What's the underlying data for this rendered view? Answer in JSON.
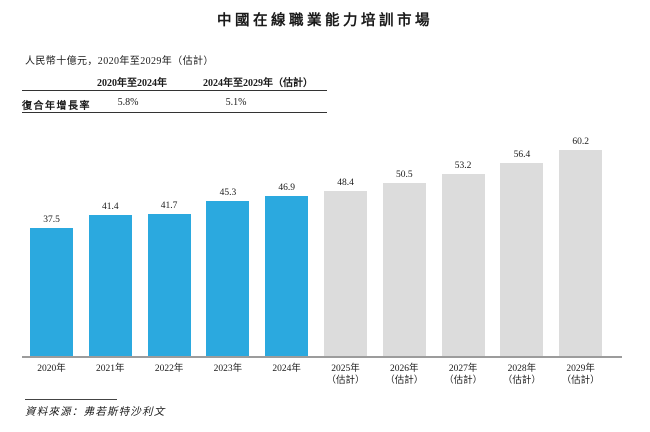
{
  "page": {
    "title": "中國在線職業能力培訓市場",
    "subtitle": "人民幣十億元，2020年至2029年（估計）",
    "source": "資料來源：弗若斯特沙利文"
  },
  "cagr_table": {
    "row_label": "復合年增長率",
    "columns": [
      {
        "header": "2020年至2024年",
        "value": "5.8%"
      },
      {
        "header": "2024年至2029年（估計）",
        "value": "5.1%"
      }
    ]
  },
  "chart_data": {
    "type": "bar",
    "title": "中國在線職業能力培訓市場",
    "unit_label": "人民幣十億元",
    "xlabel": "",
    "ylabel": "",
    "ylim": [
      0,
      62
    ],
    "grid": false,
    "legend": "none",
    "colors": {
      "historical": "#2BA9DF",
      "estimated": "#DCDCDC"
    },
    "bars": [
      {
        "label": "2020年",
        "sublabel": "",
        "value": 37.5,
        "group": "historical"
      },
      {
        "label": "2021年",
        "sublabel": "",
        "value": 41.4,
        "group": "historical"
      },
      {
        "label": "2022年",
        "sublabel": "",
        "value": 41.7,
        "group": "historical"
      },
      {
        "label": "2023年",
        "sublabel": "",
        "value": 45.3,
        "group": "historical"
      },
      {
        "label": "2024年",
        "sublabel": "",
        "value": 46.9,
        "group": "historical"
      },
      {
        "label": "2025年",
        "sublabel": "（估計）",
        "value": 48.4,
        "group": "estimated"
      },
      {
        "label": "2026年",
        "sublabel": "（估計）",
        "value": 50.5,
        "group": "estimated"
      },
      {
        "label": "2027年",
        "sublabel": "（估計）",
        "value": 53.2,
        "group": "estimated"
      },
      {
        "label": "2028年",
        "sublabel": "（估計）",
        "value": 56.4,
        "group": "estimated"
      },
      {
        "label": "2029年",
        "sublabel": "（估計）",
        "value": 60.2,
        "group": "estimated"
      }
    ]
  }
}
